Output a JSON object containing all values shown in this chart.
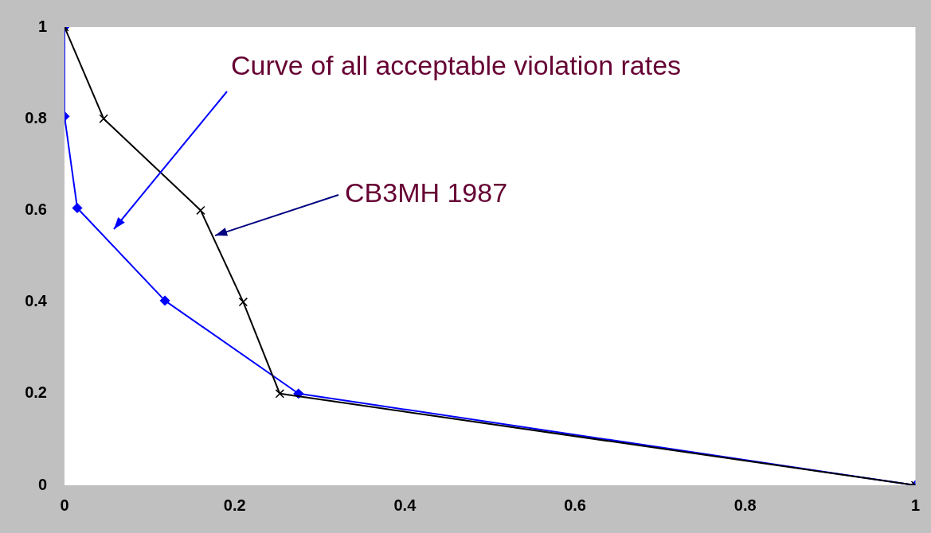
{
  "chart_data": {
    "type": "line",
    "xlim": [
      0,
      1
    ],
    "ylim": [
      0,
      1
    ],
    "xticks": [
      0,
      0.2,
      0.4,
      0.6,
      0.8,
      1
    ],
    "yticks": [
      0,
      0.2,
      0.4,
      0.6,
      0.8,
      1
    ],
    "grid": false,
    "legend": false,
    "series": [
      {
        "color": "#000000",
        "marker": "cross",
        "x": [
          0,
          0.046,
          0.16,
          0.21,
          0.253,
          1
        ],
        "values": [
          1,
          0.8,
          0.6,
          0.4,
          0.2,
          0
        ]
      },
      {
        "color": "#0000ff",
        "marker": "diamond",
        "x": [
          0,
          0,
          0.015,
          0.118,
          0.275,
          1
        ],
        "values": [
          1,
          0.805,
          0.605,
          0.403,
          0.2,
          0
        ]
      }
    ],
    "annotations": [
      "Curve of all acceptable violation rates",
      {
        "text": "CB3MH 1987",
        "x": 0.177,
        "y": 0.545
      }
    ]
  }
}
